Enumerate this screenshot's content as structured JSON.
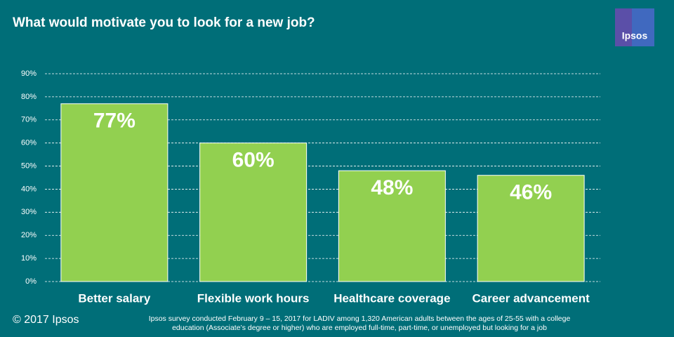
{
  "chart_data": {
    "type": "bar",
    "title": "What would motivate you to look for a new job?",
    "categories": [
      "Better salary",
      "Flexible work hours",
      "Healthcare coverage",
      "Career advancement"
    ],
    "values": [
      77,
      60,
      48,
      46
    ],
    "value_labels": [
      "77%",
      "60%",
      "48%",
      "46%"
    ],
    "color": "#92d050",
    "ylim": [
      0,
      90
    ],
    "yticks": [
      {
        "value": 0,
        "label": "0%"
      },
      {
        "value": 10,
        "label": "10%"
      },
      {
        "value": 20,
        "label": "20%"
      },
      {
        "value": 30,
        "label": "30%"
      },
      {
        "value": 40,
        "label": "40%"
      },
      {
        "value": 50,
        "label": "50%"
      },
      {
        "value": 60,
        "label": "60%"
      },
      {
        "value": 70,
        "label": "70%"
      },
      {
        "value": 80,
        "label": "80%"
      },
      {
        "value": 90,
        "label": "90%"
      }
    ],
    "grid": true
  },
  "footer": {
    "copyright": "© 2017 Ipsos",
    "note": [
      "Ipsos survey conducted February 9 – 15, 2017 for LADIV  among 1,320 American adults between the ages of 25-55 with a college",
      "education (Associate’s degree or higher) who are employed full-time, part-time, or unemployed but looking for a job"
    ]
  },
  "logo": {
    "text": "Ipsos"
  }
}
